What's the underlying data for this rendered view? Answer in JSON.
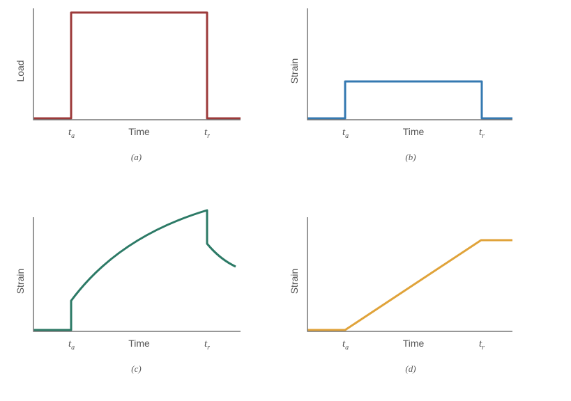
{
  "panels": [
    {
      "y_label": "Load",
      "x_label": "Time",
      "markers": [
        {
          "symbol": "t",
          "sub": "a"
        },
        {
          "symbol": "t",
          "sub": "r"
        }
      ],
      "caption": "(a)"
    },
    {
      "y_label": "Strain",
      "x_label": "Time",
      "markers": [
        {
          "symbol": "t",
          "sub": "a"
        },
        {
          "symbol": "t",
          "sub": "r"
        }
      ],
      "caption": "(b)"
    },
    {
      "y_label": "Strain",
      "x_label": "Time",
      "markers": [
        {
          "symbol": "t",
          "sub": "a"
        },
        {
          "symbol": "t",
          "sub": "r"
        }
      ],
      "caption": "(c)"
    },
    {
      "y_label": "Strain",
      "x_label": "Time",
      "markers": [
        {
          "symbol": "t",
          "sub": "a"
        },
        {
          "symbol": "t",
          "sub": "r"
        }
      ],
      "caption": "(d)"
    }
  ]
}
